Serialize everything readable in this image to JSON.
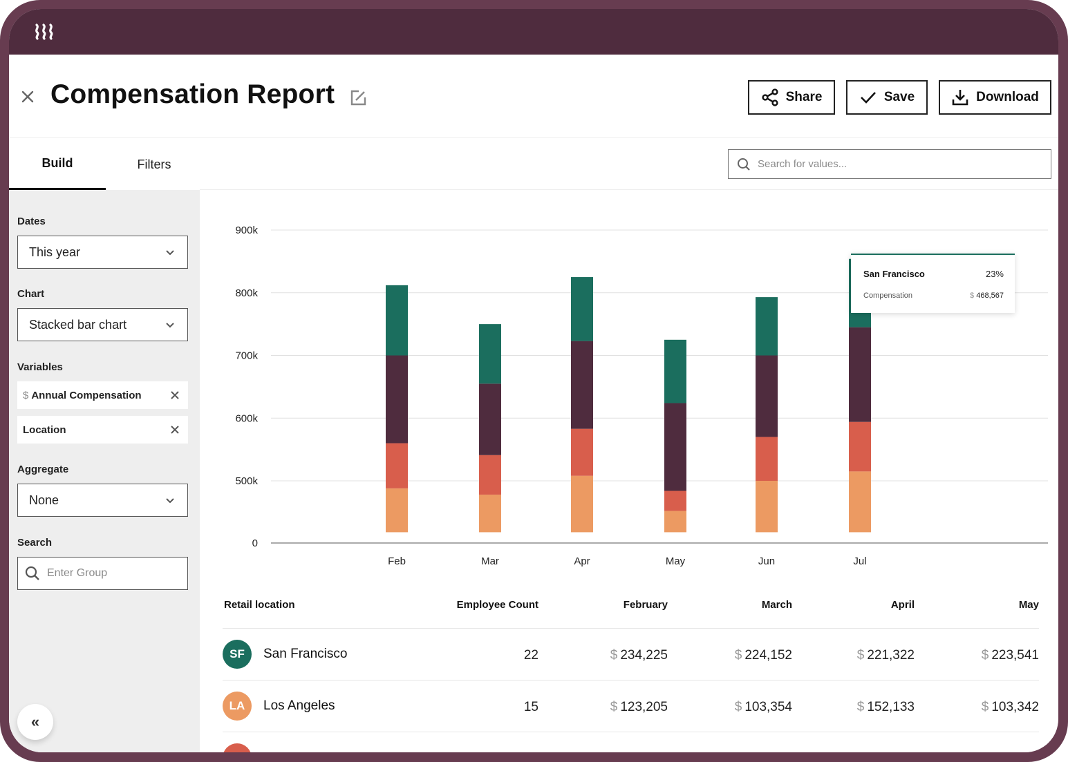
{
  "app": {
    "logo_icon": "wave-logo-icon",
    "frame_color": "#673c50",
    "topbar_color": "#4f2c3e"
  },
  "header": {
    "title": "Compensation Report",
    "close_icon": "close-icon",
    "edit_icon": "edit-icon",
    "buttons": {
      "share": "Share",
      "save": "Save",
      "download": "Download"
    }
  },
  "tabs": [
    {
      "label": "Build",
      "active": true
    },
    {
      "label": "Filters",
      "active": false
    }
  ],
  "search": {
    "placeholder": "Search for values..."
  },
  "sidebar": {
    "dates_label": "Dates",
    "dates_value": "This year",
    "chart_label": "Chart",
    "chart_value": "Stacked bar chart",
    "variables_label": "Variables",
    "variables": [
      {
        "prefix": "$",
        "label": "Annual Compensation"
      },
      {
        "prefix": "",
        "label": "Location"
      }
    ],
    "aggregate_label": "Aggregate",
    "aggregate_value": "None",
    "search_label": "Search",
    "search_placeholder": "Enter Group",
    "collapse_label": "«"
  },
  "chart_data": {
    "type": "bar",
    "stacked": true,
    "title": "",
    "xlabel": "",
    "ylabel": "",
    "categories": [
      "Feb",
      "Mar",
      "Apr",
      "May",
      "Jun",
      "Jul"
    ],
    "y_ticks": [
      "0",
      "500k",
      "600k",
      "700k",
      "800k",
      "900k"
    ],
    "y_tick_values": [
      0,
      500000,
      600000,
      700000,
      800000,
      900000
    ],
    "axis_break": "between 0 and 500k",
    "ylim": [
      0,
      900000
    ],
    "bar_base": 418000,
    "grid": true,
    "series": [
      {
        "name": "Segment 1 (orange)",
        "color": "#ec9a62",
        "values": [
          70000,
          60000,
          90000,
          34000,
          82000,
          97000
        ]
      },
      {
        "name": "Segment 2 (coral)",
        "color": "#d85e4c",
        "values": [
          72000,
          63000,
          75000,
          32000,
          70000,
          79000
        ]
      },
      {
        "name": "Segment 3 (plum)",
        "color": "#4f2c3e",
        "values": [
          140000,
          114000,
          140000,
          140000,
          130000,
          151000
        ]
      },
      {
        "name": "San Francisco (green)",
        "color": "#1b6e5e",
        "values": [
          112000,
          95000,
          102000,
          101000,
          93000,
          109000
        ]
      }
    ],
    "tooltip": {
      "category": "Jul",
      "name": "San Francisco",
      "percent": "23%",
      "label": "Compensation",
      "currency": "$",
      "value": "468,567"
    }
  },
  "table": {
    "columns": [
      "Retail location",
      "Employee Count",
      "February",
      "March",
      "April",
      "May"
    ],
    "currency": "$",
    "rows": [
      {
        "initials": "SF",
        "color": "#1b6e5e",
        "name": "San Francisco",
        "count": "22",
        "values": [
          "234,225",
          "224,152",
          "221,322",
          "223,541"
        ]
      },
      {
        "initials": "LA",
        "color": "#ec9a62",
        "name": "Los Angeles",
        "count": "15",
        "values": [
          "123,205",
          "103,354",
          "152,133",
          "103,342"
        ]
      },
      {
        "initials": "",
        "color": "#d85e4c",
        "name": "",
        "count": "",
        "values": [
          "",
          "",
          "",
          ""
        ]
      }
    ]
  }
}
